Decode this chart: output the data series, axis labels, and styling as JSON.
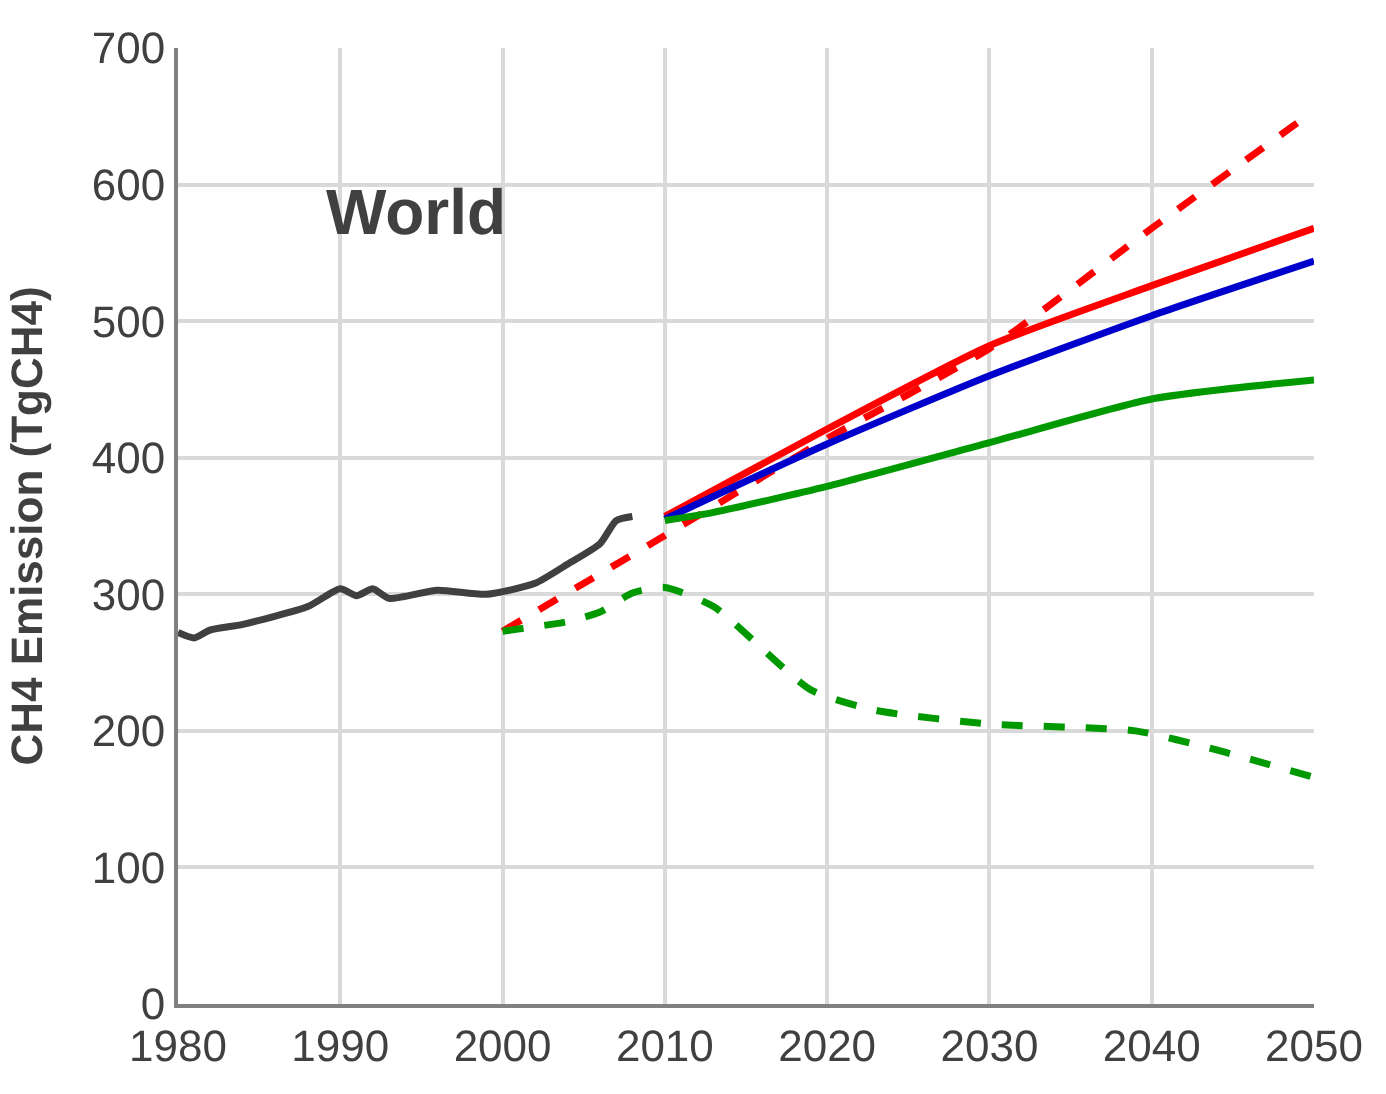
{
  "chart_data": {
    "type": "line",
    "ylabel": "CH4 Emission (TgCH4)",
    "annotations": [
      "World"
    ],
    "xlim": [
      1980,
      2050
    ],
    "xticks": [
      1980,
      1990,
      2000,
      2010,
      2020,
      2030,
      2040,
      2050
    ],
    "ylim": [
      0,
      700
    ],
    "yticks": [
      0,
      100,
      200,
      300,
      400,
      500,
      600,
      700
    ],
    "grid": true,
    "series": [
      {
        "color": "#404040",
        "line_style": "solid",
        "x": [
          1980,
          1981,
          1982,
          1984,
          1988,
          1990,
          1991,
          1992,
          1993,
          1996,
          1999,
          2002,
          2004,
          2006,
          2007,
          2008
        ],
        "values": [
          272,
          268,
          274,
          278,
          291,
          304,
          299,
          304,
          297,
          303,
          300,
          308,
          322,
          337,
          354,
          357
        ]
      },
      {
        "color": "#ff0000",
        "line_style": "dashed",
        "x": [
          2000,
          2010,
          2020,
          2030,
          2040,
          2050
        ],
        "values": [
          273,
          343,
          414,
          480,
          568,
          654
        ]
      },
      {
        "color": "#009900",
        "line_style": "dashed",
        "x": [
          2000,
          2004,
          2006,
          2008,
          2010,
          2013,
          2019,
          2023,
          2030,
          2039,
          2044,
          2050
        ],
        "values": [
          273,
          280,
          287,
          301,
          305,
          291,
          230,
          215,
          205,
          200,
          186,
          166
        ]
      },
      {
        "color": "#ff0000",
        "line_style": "solid",
        "x": [
          2010,
          2020,
          2030,
          2040,
          2050
        ],
        "values": [
          357,
          421,
          482,
          526,
          568
        ]
      },
      {
        "color": "#0000cc",
        "line_style": "solid",
        "x": [
          2010,
          2020,
          2030,
          2040,
          2050
        ],
        "values": [
          355,
          410,
          460,
          504,
          544
        ]
      },
      {
        "color": "#009900",
        "line_style": "solid",
        "x": [
          2010,
          2013,
          2020,
          2030,
          2040,
          2050
        ],
        "values": [
          354,
          360,
          379,
          411,
          443,
          457
        ]
      }
    ]
  }
}
